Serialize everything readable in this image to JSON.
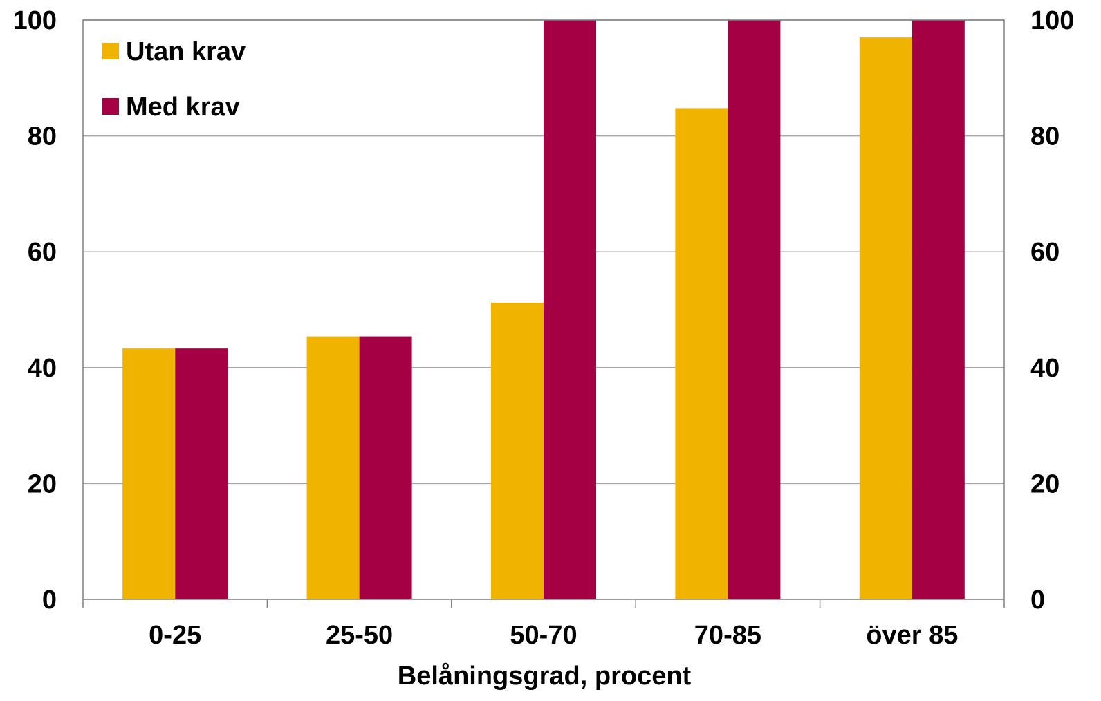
{
  "chart_data": {
    "type": "bar",
    "title": "",
    "xlabel": "Belåningsgrad, procent",
    "ylabel": "",
    "ylim": [
      0,
      100
    ],
    "yticks": [
      0,
      20,
      40,
      60,
      80,
      100
    ],
    "ytick_labels": [
      "0",
      "20",
      "40",
      "60",
      "80",
      "100"
    ],
    "secondary_y": true,
    "grid": true,
    "legend_position": "top-left",
    "categories": [
      "0-25",
      "25-50",
      "50-70",
      "70-85",
      "över 85"
    ],
    "series": [
      {
        "name": "Utan krav",
        "color": "#F0B400",
        "values": [
          43.3,
          45.4,
          51.2,
          84.8,
          97.0
        ]
      },
      {
        "name": "Med krav",
        "color": "#A50044",
        "values": [
          43.3,
          45.4,
          100,
          100,
          100
        ]
      }
    ]
  },
  "colors": {
    "grid": "#A6A6A6",
    "axis": "#808080",
    "text": "#000000"
  }
}
